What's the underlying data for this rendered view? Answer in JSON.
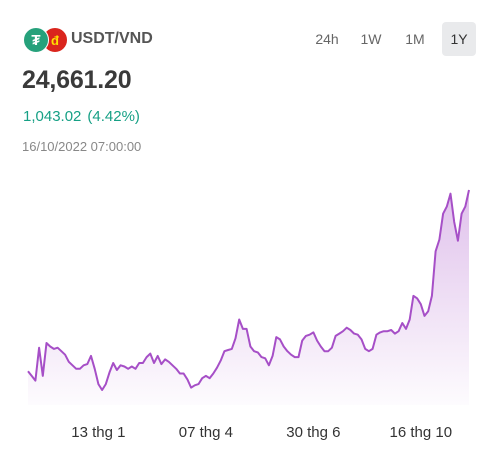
{
  "header": {
    "pair": "USDT/VND",
    "icons": [
      {
        "name": "tether-icon",
        "glyph": "₮",
        "color": "#26a17b"
      },
      {
        "name": "vnd-flag-icon",
        "glyph": "đ",
        "color": "#da251d"
      }
    ],
    "ranges": [
      "24h",
      "1W",
      "1M",
      "1Y"
    ],
    "active_range": "1Y"
  },
  "quote": {
    "price": "24,661.20",
    "change_abs": "1,043.02",
    "change_pct": "(4.42%)",
    "timestamp": "16/10/2022 07:00:00",
    "change_color": "#16a085"
  },
  "chart_data": {
    "type": "area",
    "line_color": "#a64fc7",
    "x_tick_labels": [
      "13 thg 1",
      "07 thg 4",
      "30 thg 6",
      "16 thg 10"
    ],
    "x_tick_index": [
      19,
      48,
      77,
      106
    ],
    "grid": false,
    "y_axis": "hidden",
    "values": [
      23120,
      23080,
      23040,
      23320,
      23080,
      23360,
      23330,
      23310,
      23320,
      23290,
      23260,
      23200,
      23170,
      23140,
      23140,
      23170,
      23180,
      23250,
      23140,
      23010,
      22960,
      23010,
      23110,
      23190,
      23130,
      23170,
      23160,
      23140,
      23160,
      23140,
      23190,
      23190,
      23240,
      23270,
      23190,
      23250,
      23180,
      23220,
      23200,
      23170,
      23140,
      23100,
      23100,
      23050,
      22980,
      23000,
      23010,
      23060,
      23080,
      23060,
      23100,
      23150,
      23210,
      23290,
      23300,
      23310,
      23400,
      23560,
      23480,
      23480,
      23330,
      23290,
      23280,
      23240,
      23230,
      23170,
      23250,
      23410,
      23390,
      23330,
      23290,
      23260,
      23240,
      23240,
      23380,
      23420,
      23430,
      23450,
      23380,
      23330,
      23290,
      23290,
      23320,
      23420,
      23440,
      23460,
      23490,
      23470,
      23440,
      23430,
      23390,
      23310,
      23290,
      23310,
      23430,
      23450,
      23460,
      23460,
      23470,
      23440,
      23460,
      23530,
      23480,
      23560,
      23760,
      23740,
      23690,
      23590,
      23630,
      23760,
      24140,
      24240,
      24460,
      24520,
      24630,
      24390,
      24230,
      24460,
      24520,
      24661.2
    ]
  }
}
